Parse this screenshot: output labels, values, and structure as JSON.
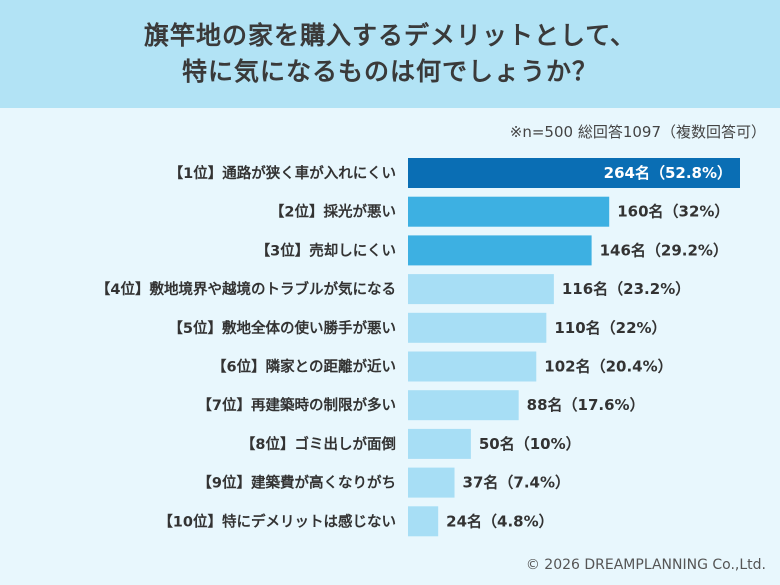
{
  "header": {
    "title_line1": "旗竿地の家を購入するデメリットとして、",
    "title_line2": "特に気になるものは何でしょうか？"
  },
  "note": "※n=500 総回答1097（複数回答可）",
  "copyright": "© 2026 DREAMPLANNING Co.,Ltd.",
  "colors": {
    "top_bar": "#0a6eb4",
    "mid_bar": "#3db0e2",
    "low_bar": "#a7def5",
    "top_label": "#ffffff",
    "label": "#333333"
  },
  "chart_data": {
    "type": "bar",
    "orientation": "horizontal",
    "categories": [
      "【1位】通路が狭く車が入れにくい",
      "【2位】採光が悪い",
      "【3位】売却しにくい",
      "【4位】敷地境界や越境のトラブルが気になる",
      "【5位】敷地全体の使い勝手が悪い",
      "【6位】隣家との距離が近い",
      "【7位】再建築時の制限が多い",
      "【8位】ゴミ出しが面倒",
      "【9位】建築費が高くなりがち",
      "【10位】特にデメリットは感じない"
    ],
    "values": [
      264,
      160,
      146,
      116,
      110,
      102,
      88,
      50,
      37,
      24
    ],
    "value_labels": [
      "264名（52.8%）",
      "160名（32%）",
      "146名（29.2%）",
      "116名（23.2%）",
      "110名（22%）",
      "102名（20.4%）",
      "88名（17.6%）",
      "50名（10%）",
      "37名（7.4%）",
      "24名（4.8%）"
    ],
    "bar_colors": [
      "#0a6eb4",
      "#3db0e2",
      "#3db0e2",
      "#a7def5",
      "#a7def5",
      "#a7def5",
      "#a7def5",
      "#a7def5",
      "#a7def5",
      "#a7def5"
    ],
    "xlim": [
      0,
      264
    ],
    "grid": false
  }
}
